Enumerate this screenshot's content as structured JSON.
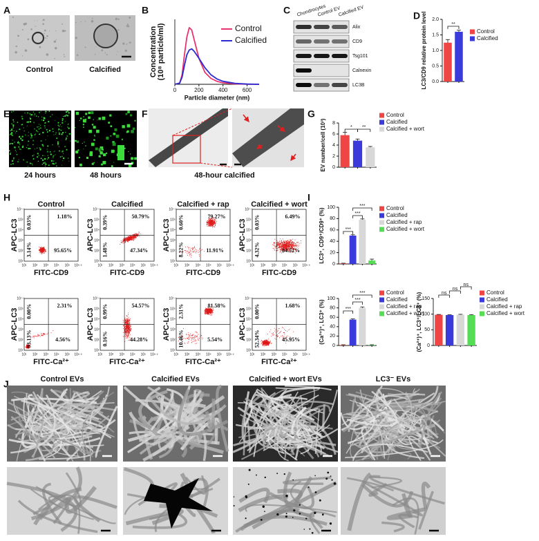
{
  "panel_labels": [
    "A",
    "B",
    "C",
    "D",
    "E",
    "F",
    "G",
    "H",
    "I",
    "J"
  ],
  "panel_A": {
    "captions": [
      "Control",
      "Calcified"
    ]
  },
  "panel_C": {
    "lanes": [
      "Chondrocytes",
      "Control EV",
      "Calcified EV"
    ],
    "bands": [
      "Alix",
      "CD9",
      "Tsg101",
      "Calnexin",
      "LC3B"
    ]
  },
  "panel_E": {
    "captions": [
      "24 hours",
      "48 hours"
    ]
  },
  "panel_F": {
    "caption": "48-hour calcified"
  },
  "panel_H": {
    "ylabel": "APC-LC3",
    "xticks": [
      "10¹",
      "10²",
      "10³",
      "10⁴",
      "10⁵",
      "10⁶·⁶"
    ],
    "yticks": [
      "10¹",
      "10²",
      "10³",
      "10⁴",
      "10⁵",
      "10⁷·⁴"
    ],
    "rows": [
      {
        "xlabel": "FITC-CD9",
        "plots": [
          {
            "title": "Control",
            "quadrants": [
              "0.03%",
              "1.18%",
              "3.14%",
              "95.65%"
            ]
          },
          {
            "title": "Calcified",
            "quadrants": [
              "0.39%",
              "50.79%",
              "1.48%",
              "47.34%"
            ]
          },
          {
            "title": "Calcified + rap",
            "quadrants": [
              "0.60%",
              "79.27%",
              "8.22%",
              "11.91%"
            ]
          },
          {
            "title": "Calcified + wort",
            "quadrants": [
              "0.03%",
              "6.49%",
              "4.32%",
              "84.52%"
            ]
          }
        ]
      },
      {
        "xlabel": "FITC-Ca²⁺",
        "plots": [
          {
            "quadrants": [
              "0.00%",
              "2.31%",
              "93.13%",
              "4.56%"
            ]
          },
          {
            "quadrants": [
              "0.99%",
              "54.57%",
              "0.16%",
              "44.28%"
            ]
          },
          {
            "quadrants": [
              "2.31%",
              "81.58%",
              "10.46%",
              "5.54%"
            ]
          },
          {
            "quadrants": [
              "0.00%",
              "1.68%",
              "52.34%",
              "45.95%"
            ]
          }
        ]
      }
    ]
  },
  "panel_J": {
    "titles": [
      "Control EVs",
      "Calcified EVs",
      "Calcified + wort EVs",
      "LC3⁻ EVs"
    ]
  },
  "chart_data": [
    {
      "type": "line",
      "xlabel": "Particle diameter (nm)",
      "ylabel": [
        "Concentration",
        "(10⁸ particle/ml)"
      ],
      "x": [
        0,
        40,
        60,
        80,
        100,
        120,
        140,
        160,
        200,
        250,
        300,
        350,
        400,
        500,
        600,
        700
      ],
      "xlim": [
        0,
        700
      ],
      "xticks": [
        0,
        200,
        400,
        600
      ],
      "ylim": [
        0,
        5.5
      ],
      "legend": "upper right",
      "series": [
        {
          "name": "Control",
          "color": "#e8336e",
          "values": [
            0,
            0.1,
            0.8,
            2.5,
            4.0,
            4.8,
            4.6,
            3.8,
            2.2,
            1.0,
            0.5,
            0.25,
            0.12,
            0.04,
            0.01,
            0
          ]
        },
        {
          "name": "Calcified",
          "color": "#2a2ad0",
          "values": [
            0,
            0.1,
            0.6,
            1.6,
            2.5,
            2.9,
            3.0,
            2.8,
            2.2,
            1.4,
            0.8,
            0.45,
            0.25,
            0.08,
            0.02,
            0
          ]
        }
      ]
    },
    {
      "type": "bar",
      "ylabel": "LC3/CD9 relative protein level",
      "ylim": [
        0,
        2
      ],
      "yticks": [
        {
          "value": 0,
          "label": "0.0"
        },
        0.5,
        {
          "value": 1,
          "label": "1.0"
        },
        1.5,
        {
          "value": 2,
          "label": "2.0"
        }
      ],
      "annotations": [
        "**"
      ],
      "legend": "upper right",
      "series": [
        {
          "name": "Control",
          "color": "#f04545",
          "values": [
            1.25
          ],
          "errors": [
            0.1
          ]
        },
        {
          "name": "Calcified",
          "color": "#3b3bdb",
          "values": [
            1.6
          ],
          "errors": [
            0.05
          ]
        }
      ]
    },
    {
      "type": "bar",
      "ylabel": "EV number/cell (10³)",
      "ylim": [
        0,
        8
      ],
      "yticks": [
        0,
        2,
        4,
        6,
        8
      ],
      "annotations": [
        "*",
        "**"
      ],
      "legend": "upper right",
      "series": [
        {
          "name": "Control",
          "color": "#f04545",
          "values": [
            5.8
          ],
          "errors": [
            0.5
          ]
        },
        {
          "name": "Calcified",
          "color": "#3b3bdb",
          "values": [
            4.8
          ],
          "errors": [
            0.3
          ]
        },
        {
          "name": "Calcified + wort",
          "color": "#d8d8d8",
          "values": [
            3.6
          ],
          "errors": [
            0.15
          ]
        }
      ]
    },
    {
      "type": "bar",
      "ylabel": "LC3⁺, CD9⁺/CD9⁺ (%)",
      "ylim": [
        0,
        100
      ],
      "yticks": [
        0,
        20,
        40,
        60,
        80,
        100
      ],
      "annotations": [
        "***",
        "***",
        "***"
      ],
      "legend": "upper right",
      "series": [
        {
          "name": "Control",
          "color": "#f04545",
          "values": [
            1
          ],
          "errors": [
            0.3
          ]
        },
        {
          "name": "Calcified",
          "color": "#3b3bdb",
          "values": [
            50
          ],
          "errors": [
            1.5
          ]
        },
        {
          "name": "Calcified + rap",
          "color": "#d8d8d8",
          "values": [
            78
          ],
          "errors": [
            1.5
          ]
        },
        {
          "name": "Calcified + wort",
          "color": "#55dd55",
          "values": [
            6
          ],
          "errors": [
            2.5
          ]
        }
      ]
    },
    {
      "type": "bar",
      "ylabel": "(Ca²⁺)⁺, LC3⁺ (%)",
      "ylim": [
        0,
        100
      ],
      "yticks": [
        0,
        20,
        40,
        60,
        80,
        100
      ],
      "annotations": [
        "***",
        "***",
        "***"
      ],
      "legend": "upper right",
      "series": [
        {
          "name": "Control",
          "color": "#f04545",
          "values": [
            1
          ],
          "errors": [
            0.5
          ]
        },
        {
          "name": "Calcified",
          "color": "#3b3bdb",
          "values": [
            55
          ],
          "errors": [
            1.5
          ]
        },
        {
          "name": "Calcified + rap",
          "color": "#d8d8d8",
          "values": [
            80
          ],
          "errors": [
            2
          ]
        },
        {
          "name": "Calcified + wort",
          "color": "#55dd55",
          "values": [
            1
          ],
          "errors": [
            0.5
          ]
        }
      ]
    },
    {
      "type": "bar",
      "ylabel": "(Ca²⁺)⁺, LC3⁺/LC3⁺ (%)",
      "ylim": [
        0,
        150
      ],
      "yticks": [
        0,
        50,
        100,
        150
      ],
      "annotations": [
        "ns",
        "ns",
        "ns"
      ],
      "legend": "upper right",
      "series": [
        {
          "name": "Control",
          "color": "#f04545",
          "values": [
            98
          ],
          "errors": [
            1
          ]
        },
        {
          "name": "Calcified",
          "color": "#3b3bdb",
          "values": [
            97
          ],
          "errors": [
            1
          ]
        },
        {
          "name": "Calcified + rap",
          "color": "#d8d8d8",
          "values": [
            98
          ],
          "errors": [
            1.5
          ]
        },
        {
          "name": "Calcified + wort",
          "color": "#55dd55",
          "values": [
            97
          ],
          "errors": [
            1.5
          ]
        }
      ]
    }
  ]
}
